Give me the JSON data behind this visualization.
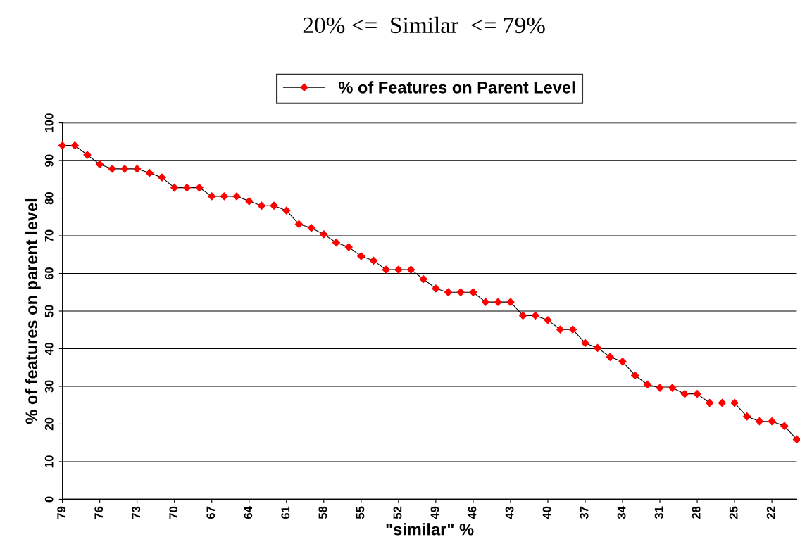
{
  "chart_data": {
    "type": "line",
    "title": "20% <=  Similar  <= 79%",
    "xlabel": "\"similar\" %",
    "ylabel": "% of features on parent level",
    "categories": [
      "79",
      null,
      null,
      "76",
      null,
      null,
      "73",
      null,
      null,
      "70",
      null,
      null,
      "67",
      null,
      null,
      "64",
      null,
      null,
      "61",
      null,
      null,
      "58",
      null,
      null,
      "55",
      null,
      null,
      "52",
      null,
      null,
      "49",
      null,
      null,
      "46",
      null,
      null,
      "43",
      null,
      null,
      "40",
      null,
      null,
      "37",
      null,
      null,
      "34",
      null,
      null,
      "31",
      null,
      null,
      "28",
      null,
      null,
      "25",
      null,
      null,
      "22",
      null,
      null
    ],
    "series": [
      {
        "name": "% of Features on Parent Level",
        "color": "#ff0000",
        "values": [
          94,
          94,
          91.5,
          89,
          87.8,
          87.8,
          87.8,
          86.7,
          85.5,
          82.8,
          82.8,
          82.8,
          80.5,
          80.5,
          80.5,
          79.2,
          78,
          78,
          76.7,
          73.1,
          72.1,
          70.4,
          68.2,
          67,
          64.6,
          63.4,
          61,
          61,
          61,
          58.5,
          56,
          55,
          55,
          55,
          52.4,
          52.4,
          52.4,
          48.8,
          48.8,
          47.6,
          45.1,
          45.1,
          41.5,
          40.2,
          37.8,
          36.6,
          32.9,
          30.5,
          29.6,
          29.6,
          28,
          28,
          25.6,
          25.6,
          25.6,
          22,
          20.7,
          20.7,
          19.5,
          15.9
        ]
      }
    ],
    "ylim": [
      0,
      100
    ],
    "yticks": [
      0,
      10,
      20,
      30,
      40,
      50,
      60,
      70,
      80,
      90,
      100
    ],
    "grid": "y",
    "legend": "top",
    "marker": "diamond",
    "line_style": "solid"
  }
}
